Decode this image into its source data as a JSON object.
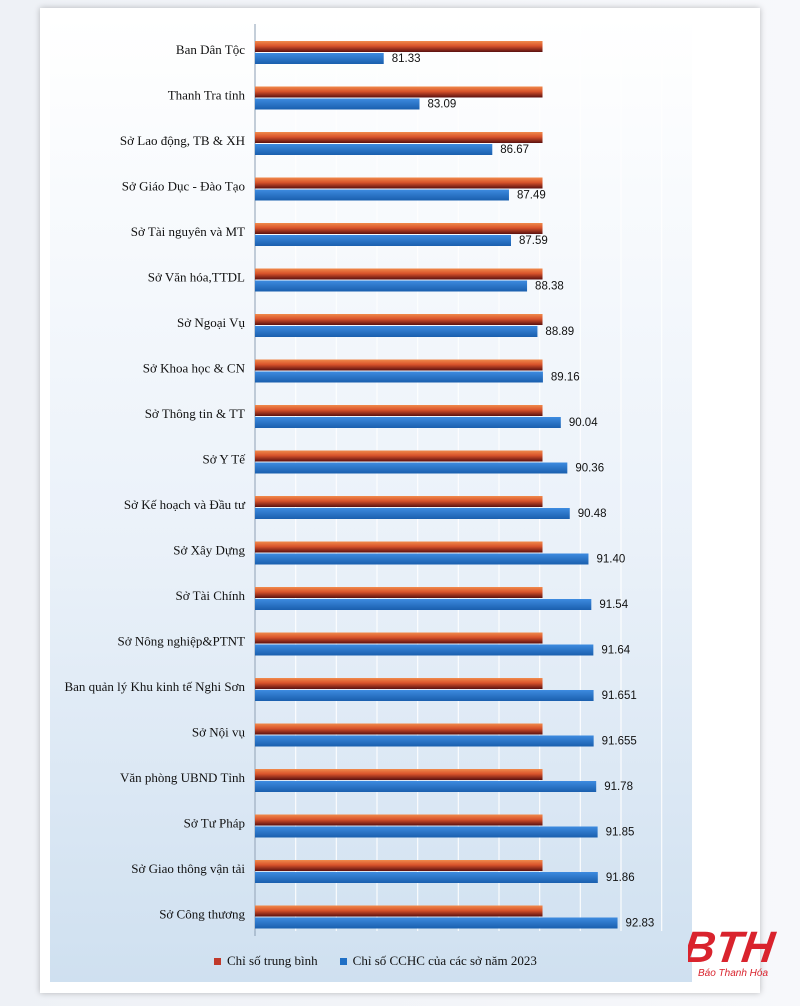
{
  "chart_data": {
    "type": "bar",
    "orientation": "horizontal",
    "categories": [
      "Ban Dân Tộc",
      "Thanh Tra tỉnh",
      "Sở Lao động, TB & XH",
      "Sở Giáo Dục - Đào Tạo",
      "Sở Tài nguyên và MT",
      "Sở Văn hóa,TTDL",
      "Sở Ngoại Vụ",
      "Sở Khoa học & CN",
      "Sở Thông tin & TT",
      "Sở Y Tế",
      "Sở Kế hoạch và Đầu tư",
      "Sở Xây Dựng",
      "Sở Tài Chính",
      "Sở Nông nghiệp&PTNT",
      "Ban quản lý Khu kinh tế Nghi Sơn",
      "Sở Nội vụ",
      "Văn phòng UBND Tỉnh",
      "Sở Tư Pháp",
      "Sở Giao thông vận tải",
      "Sở Công thương"
    ],
    "series": [
      {
        "name": "Chỉ số trung bình",
        "color": "#c0392b",
        "values": [
          89.14,
          89.14,
          89.14,
          89.14,
          89.14,
          89.14,
          89.14,
          89.14,
          89.14,
          89.14,
          89.14,
          89.14,
          89.14,
          89.14,
          89.14,
          89.14,
          89.14,
          89.14,
          89.14,
          89.14
        ]
      },
      {
        "name": "Chỉ số CCHC của các sở năm 2023",
        "color": "#1f6fc5",
        "values": [
          81.33,
          83.09,
          86.67,
          87.49,
          87.59,
          88.38,
          88.89,
          89.16,
          90.04,
          90.36,
          90.48,
          91.4,
          91.54,
          91.64,
          91.651,
          91.655,
          91.78,
          91.85,
          91.86,
          92.83
        ]
      }
    ],
    "data_labels": [
      "81.33",
      "83.09",
      "86.67",
      "87.49",
      "87.59",
      "88.38",
      "88.89",
      "89.16",
      "90.04",
      "90.36",
      "90.48",
      "91.40",
      "91.54",
      "91.64",
      "91.651",
      "91.655",
      "91.78",
      "91.85",
      "91.86",
      "92.83"
    ],
    "xlim": [
      75,
      96
    ],
    "grid": true,
    "legend_position": "bottom",
    "title": "",
    "xlabel": "",
    "ylabel": ""
  },
  "logo": {
    "text": "BTH",
    "subtext": "Báo Thanh Hóa",
    "color": "#d9232d"
  }
}
